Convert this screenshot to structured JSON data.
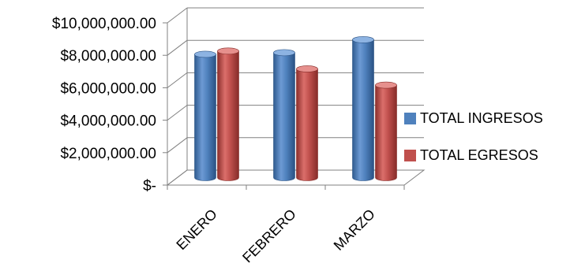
{
  "chart_data": {
    "type": "bar",
    "style": "3d-cylinder",
    "categories": [
      "ENERO",
      "FEBRERO",
      "MARZO"
    ],
    "series": [
      {
        "name": "TOTAL INGRESOS",
        "color": "#4F81BD",
        "values": [
          7600000,
          7700000,
          8500000
        ]
      },
      {
        "name": "TOTAL EGRESOS",
        "color": "#C0504D",
        "values": [
          7800000,
          6700000,
          5700000
        ]
      }
    ],
    "ylim": [
      0,
      10000000
    ],
    "yticks": [
      0,
      2000000,
      4000000,
      6000000,
      8000000,
      10000000
    ],
    "ytick_labels": [
      "$-",
      "$2,000,000.00",
      "$4,000,000.00",
      "$6,000,000.00",
      "$8,000,000.00",
      "$10,000,000.00"
    ],
    "grid": true,
    "legend_position": "right",
    "title": "",
    "xlabel": "",
    "ylabel": ""
  }
}
